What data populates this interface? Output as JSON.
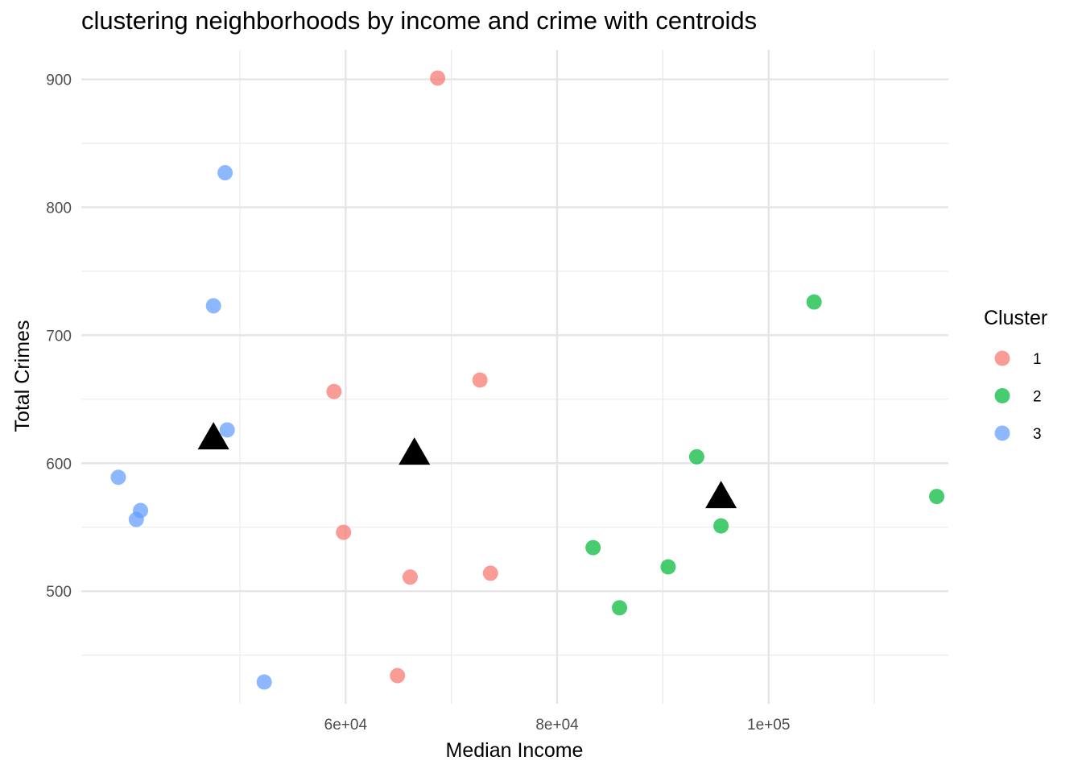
{
  "chart_data": {
    "type": "scatter",
    "title": "clustering neighborhoods by income and crime with centroids",
    "xlabel": "Median Income",
    "ylabel": "Total Crimes",
    "xlim": [
      35000,
      117000
    ],
    "ylim": [
      412,
      923
    ],
    "x_ticks": [
      {
        "value": 60000,
        "label": "6e+04"
      },
      {
        "value": 80000,
        "label": "8e+04"
      },
      {
        "value": 100000,
        "label": "1e+05"
      }
    ],
    "x_minor_ticks": [
      50000,
      70000,
      90000,
      110000
    ],
    "y_ticks": [
      {
        "value": 500,
        "label": "500"
      },
      {
        "value": 600,
        "label": "600"
      },
      {
        "value": 700,
        "label": "700"
      },
      {
        "value": 800,
        "label": "800"
      },
      {
        "value": 900,
        "label": "900"
      }
    ],
    "y_minor_ticks": [
      450,
      550,
      650,
      750,
      850
    ],
    "grid": true,
    "legend": {
      "title": "Cluster",
      "position": "right"
    },
    "series": [
      {
        "name": "1",
        "color": "#F8766D",
        "points": [
          {
            "x": 68700,
            "y": 901
          },
          {
            "x": 72700,
            "y": 665
          },
          {
            "x": 58900,
            "y": 656
          },
          {
            "x": 59800,
            "y": 546
          },
          {
            "x": 66100,
            "y": 511
          },
          {
            "x": 73700,
            "y": 514
          },
          {
            "x": 64900,
            "y": 434
          }
        ]
      },
      {
        "name": "2",
        "color": "#00BA38",
        "points": [
          {
            "x": 104300,
            "y": 726
          },
          {
            "x": 93200,
            "y": 605
          },
          {
            "x": 115900,
            "y": 574
          },
          {
            "x": 95500,
            "y": 551
          },
          {
            "x": 83400,
            "y": 534
          },
          {
            "x": 90500,
            "y": 519
          },
          {
            "x": 85900,
            "y": 487
          }
        ]
      },
      {
        "name": "3",
        "color": "#619CFF",
        "points": [
          {
            "x": 48600,
            "y": 827
          },
          {
            "x": 47500,
            "y": 723
          },
          {
            "x": 48800,
            "y": 626
          },
          {
            "x": 38500,
            "y": 589
          },
          {
            "x": 40600,
            "y": 563
          },
          {
            "x": 40200,
            "y": 556
          },
          {
            "x": 52300,
            "y": 429
          }
        ]
      }
    ],
    "centroids": [
      {
        "x": 47500,
        "y": 619
      },
      {
        "x": 66500,
        "y": 607
      },
      {
        "x": 95500,
        "y": 573
      }
    ]
  }
}
